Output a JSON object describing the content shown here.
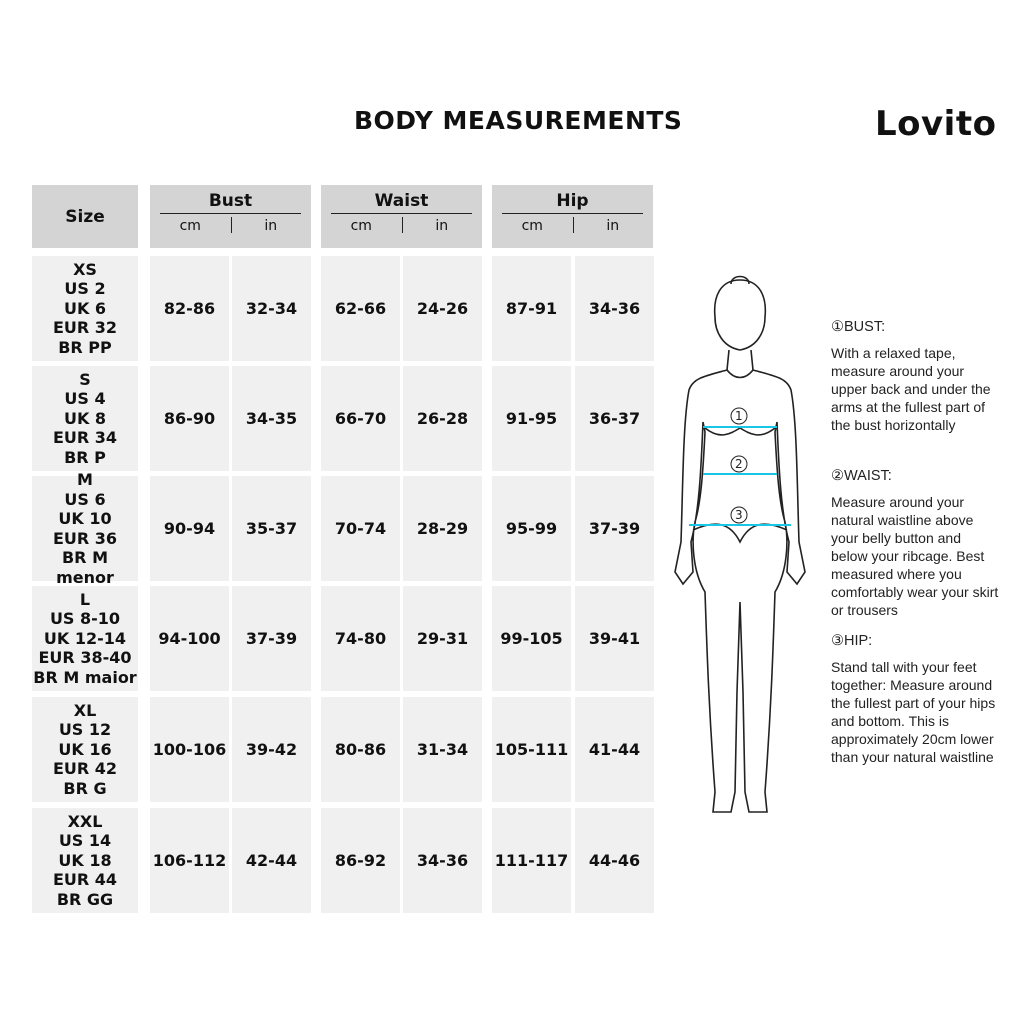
{
  "title": "BODY MEASUREMENTS",
  "brand": "Lovito",
  "header": {
    "size": "Size",
    "groups": [
      {
        "label": "Bust",
        "units": [
          "cm",
          "in"
        ]
      },
      {
        "label": "Waist",
        "units": [
          "cm",
          "in"
        ]
      },
      {
        "label": "Hip",
        "units": [
          "cm",
          "in"
        ]
      }
    ]
  },
  "rows": [
    {
      "size": [
        "XS",
        "US 2",
        "UK 6",
        "EUR 32",
        "BR PP"
      ],
      "values": [
        "82-86",
        "32-34",
        "62-66",
        "24-26",
        "87-91",
        "34-36"
      ]
    },
    {
      "size": [
        "S",
        "US 4",
        "UK 8",
        "EUR 34",
        "BR P"
      ],
      "values": [
        "86-90",
        "34-35",
        "66-70",
        "26-28",
        "91-95",
        "36-37"
      ]
    },
    {
      "size": [
        "M",
        "US 6",
        "UK 10",
        "EUR 36",
        "BR M menor"
      ],
      "values": [
        "90-94",
        "35-37",
        "70-74",
        "28-29",
        "95-99",
        "37-39"
      ]
    },
    {
      "size": [
        "L",
        "US 8-10",
        "UK 12-14",
        "EUR 38-40",
        "BR M maior"
      ],
      "values": [
        "94-100",
        "37-39",
        "74-80",
        "29-31",
        "99-105",
        "39-41"
      ]
    },
    {
      "size": [
        "XL",
        "US 12",
        "UK 16",
        "EUR 42",
        "BR G"
      ],
      "values": [
        "100-106",
        "39-42",
        "80-86",
        "31-34",
        "105-111",
        "41-44"
      ]
    },
    {
      "size": [
        "XXL",
        "US 14",
        "UK 18",
        "EUR 44",
        "BR GG"
      ],
      "values": [
        "106-112",
        "42-44",
        "86-92",
        "34-36",
        "111-117",
        "44-46"
      ]
    }
  ],
  "figure": {
    "markers": [
      "1",
      "2",
      "3"
    ],
    "tape_color": "#19c6e6"
  },
  "instructions": [
    {
      "heading": "①BUST:",
      "text": "With a relaxed tape, measure around your upper back and under the arms at the fullest part of the bust horizontally"
    },
    {
      "heading": "②WAIST:",
      "text": "Measure around your natural waistline above your belly button and below your ribcage. Best measured where you comfortably wear your skirt or trousers"
    },
    {
      "heading": "③HIP:",
      "text": "Stand tall with your feet together: Measure around the fullest part of your hips and bottom. This is approximately 20cm lower than your natural waistline"
    }
  ]
}
